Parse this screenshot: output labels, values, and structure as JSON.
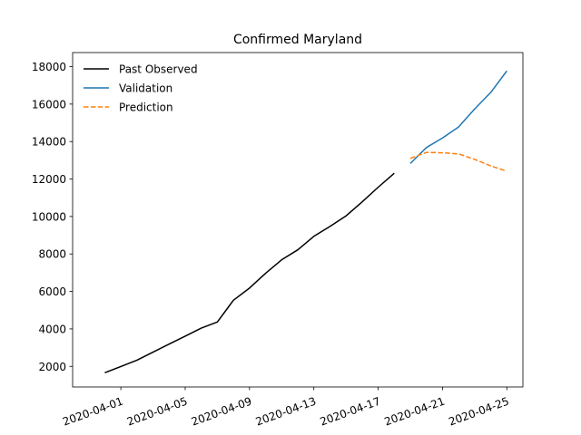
{
  "chart_data": {
    "type": "line",
    "title": "Confirmed Maryland",
    "xlabel": "",
    "ylabel": "",
    "x_axis_type": "date",
    "xlim": [
      "2020-03-29",
      "2020-04-26"
    ],
    "ylim": [
      900,
      18750
    ],
    "x_ticks": [
      "2020-04-01",
      "2020-04-05",
      "2020-04-09",
      "2020-04-13",
      "2020-04-17",
      "2020-04-21",
      "2020-04-25"
    ],
    "y_ticks": [
      2000,
      4000,
      6000,
      8000,
      10000,
      12000,
      14000,
      16000,
      18000
    ],
    "legend_position": "top-left",
    "grid": false,
    "series": [
      {
        "name": "Past Observed",
        "color": "#000000",
        "style": "solid",
        "x": [
          "2020-03-31",
          "2020-04-01",
          "2020-04-02",
          "2020-04-03",
          "2020-04-04",
          "2020-04-05",
          "2020-04-06",
          "2020-04-07",
          "2020-04-08",
          "2020-04-09",
          "2020-04-10",
          "2020-04-11",
          "2020-04-12",
          "2020-04-13",
          "2020-04-14",
          "2020-04-15",
          "2020-04-16",
          "2020-04-17",
          "2020-04-18"
        ],
        "values": [
          1660,
          1990,
          2330,
          2760,
          3190,
          3610,
          4040,
          4370,
          5530,
          6180,
          6970,
          7690,
          8220,
          8940,
          9470,
          10030,
          10780,
          11560,
          12310
        ]
      },
      {
        "name": "Validation",
        "color": "#1f77b4",
        "style": "solid",
        "x": [
          "2020-04-19",
          "2020-04-20",
          "2020-04-21",
          "2020-04-22",
          "2020-04-23",
          "2020-04-24",
          "2020-04-25"
        ],
        "values": [
          12830,
          13680,
          14190,
          14780,
          15740,
          16620,
          17770
        ]
      },
      {
        "name": "Prediction",
        "color": "#ff7f0e",
        "style": "dashed",
        "x": [
          "2020-04-19",
          "2020-04-20",
          "2020-04-21",
          "2020-04-22",
          "2020-04-23",
          "2020-04-24",
          "2020-04-25"
        ],
        "values": [
          13100,
          13420,
          13400,
          13340,
          13050,
          12700,
          12420
        ]
      }
    ]
  }
}
